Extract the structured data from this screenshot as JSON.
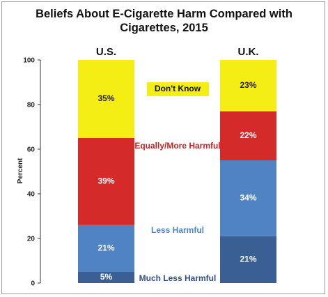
{
  "chart_data": {
    "type": "bar",
    "stacked": true,
    "title_line1": "Beliefs About E-Cigarette Harm Compared with",
    "title_line2": "Cigarettes, 2015",
    "ylabel": "Percent",
    "ylim": [
      0,
      100
    ],
    "yticks": [
      "0",
      "20",
      "40",
      "60",
      "80",
      "100"
    ],
    "grid": false,
    "categories": [
      "U.S.",
      "U.K."
    ],
    "series": [
      {
        "name": "Much Less Harmful",
        "values": [
          5,
          21
        ],
        "labels": [
          "5%",
          "21%"
        ],
        "color": "#3a5f95",
        "label_color": "#ffffff"
      },
      {
        "name": "Less Harmful",
        "values": [
          21,
          34
        ],
        "labels": [
          "21%",
          "34%"
        ],
        "color": "#4f83c3",
        "label_color": "#ffffff"
      },
      {
        "name": "Equally/More Harmful",
        "values": [
          39,
          22
        ],
        "labels": [
          "39%",
          "22%"
        ],
        "color": "#d42a2a",
        "label_color": "#ffffff"
      },
      {
        "name": "Don't Know",
        "values": [
          35,
          23
        ],
        "labels": [
          "35%",
          "23%"
        ],
        "color": "#f5ee14",
        "label_color": "#222222"
      }
    ],
    "legend_colors": {
      "Much Less Harmful": "#2f4f86",
      "Less Harmful": "#4f83c3",
      "Equally/More Harmful": "#cc2222",
      "Don't Know": "#111111"
    }
  }
}
